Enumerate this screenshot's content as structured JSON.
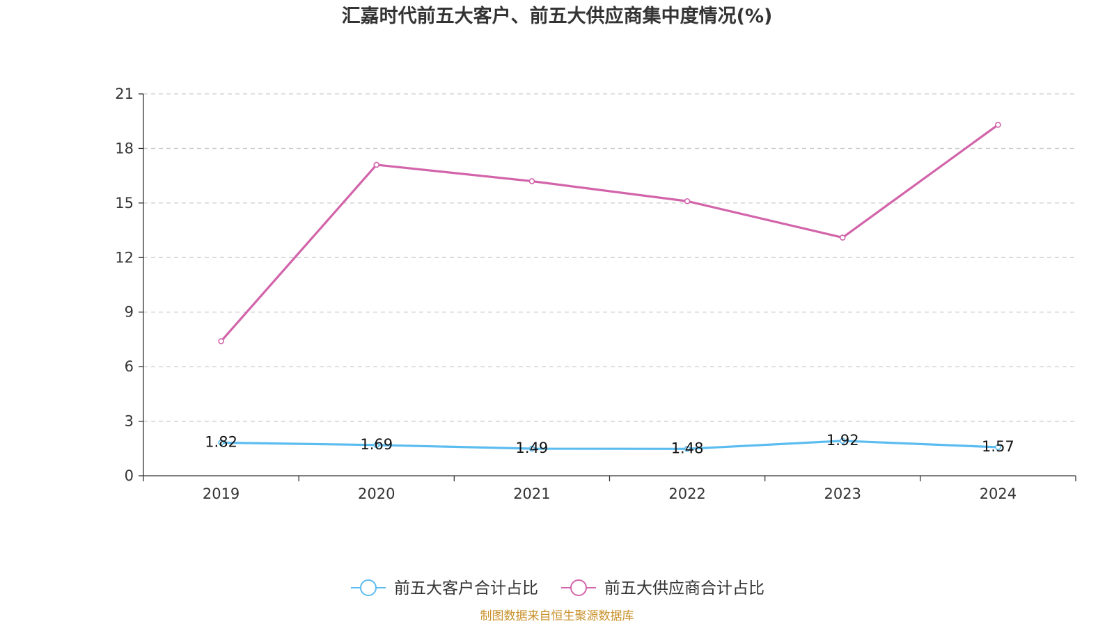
{
  "chart_data": {
    "type": "line",
    "title": "汇嘉时代前五大客户、前五大供应商集中度情况(%)",
    "categories": [
      "2019",
      "2020",
      "2021",
      "2022",
      "2023",
      "2024"
    ],
    "ylim": [
      0,
      21
    ],
    "yticks": [
      "0",
      "3",
      "6",
      "9",
      "12",
      "15",
      "18",
      "21"
    ],
    "grid": true,
    "legend_position": "bottom-center",
    "series": [
      {
        "name": "前五大客户合计占比",
        "color": "#5bbcf0",
        "values": [
          1.82,
          1.69,
          1.49,
          1.48,
          1.92,
          1.57
        ],
        "labels": [
          "1.82",
          "1.69",
          "1.49",
          "1.48",
          "1.92",
          "1.57"
        ]
      },
      {
        "name": "前五大供应商合计占比",
        "color": "#d264aa",
        "values": [
          7.4,
          17.1,
          16.2,
          15.1,
          13.1,
          19.3
        ]
      }
    ]
  },
  "source": "制图数据来自恒生聚源数据库"
}
